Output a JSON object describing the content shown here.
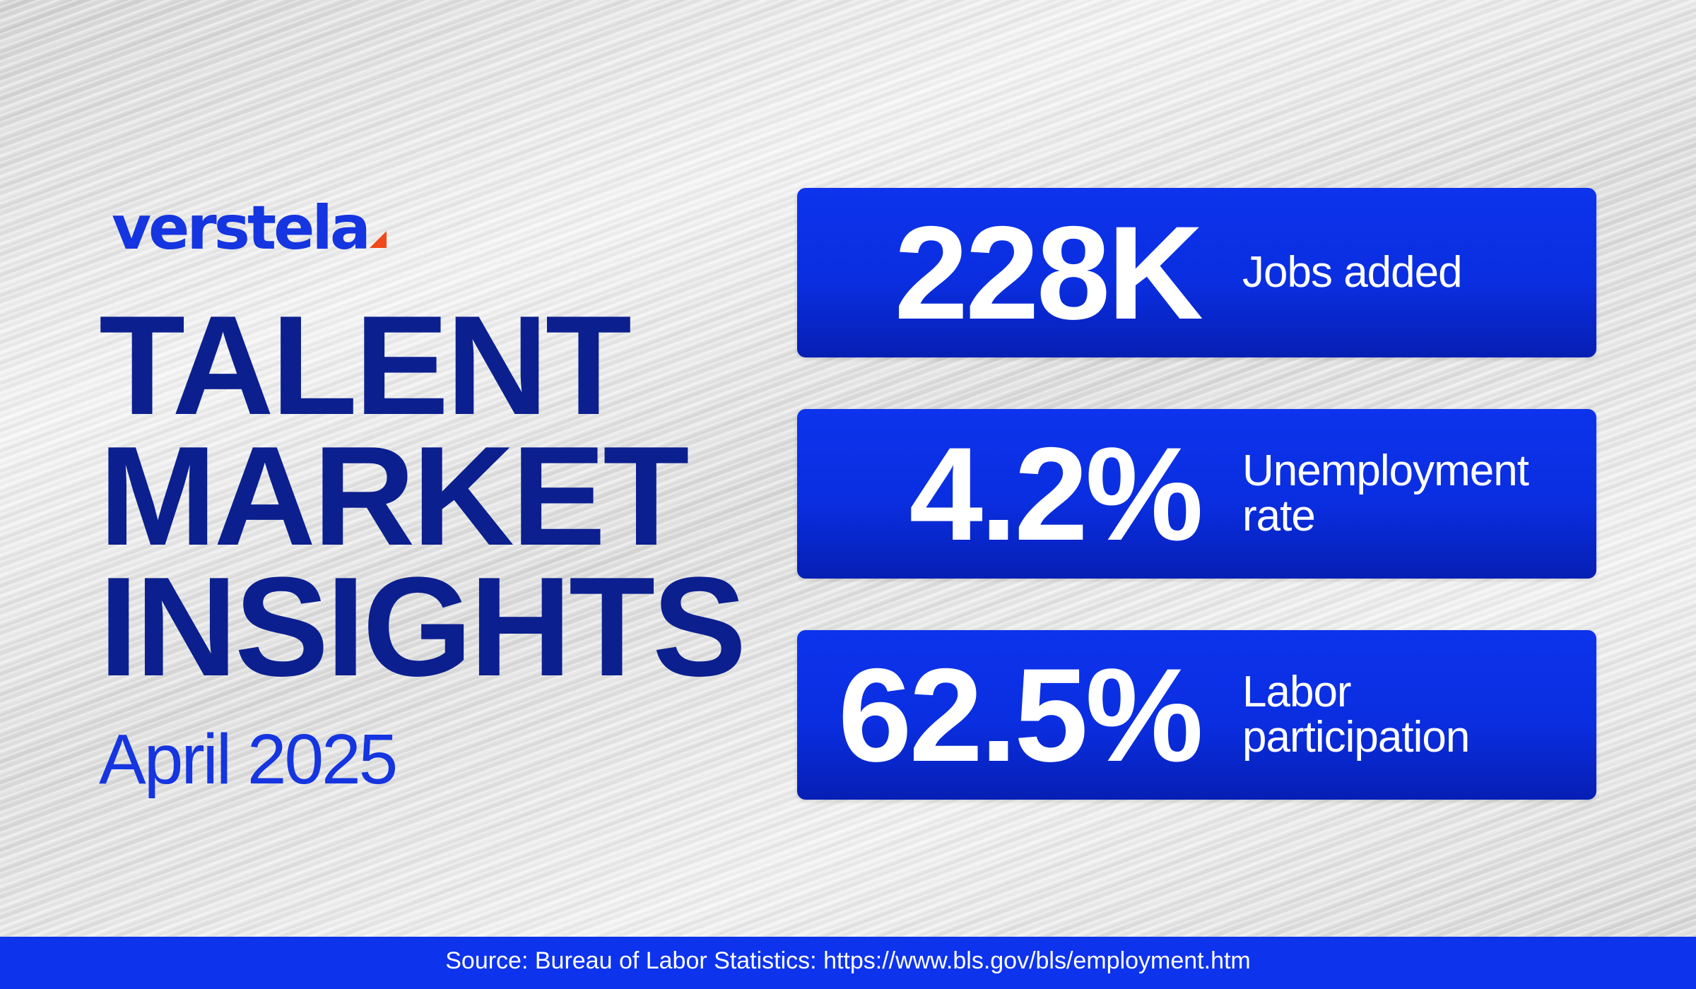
{
  "brand": {
    "logo_text": "verstela",
    "colors": {
      "brand_blue": "#1535e0",
      "navy": "#0b1f8f",
      "accent_orange": "#f04a1a",
      "card_blue": "#0d33ec"
    }
  },
  "title": {
    "line1": "TALENT",
    "line2": "MARKET",
    "line3": "INSIGHTS"
  },
  "date": "April 2025",
  "stats": [
    {
      "value": "228K",
      "label": "Jobs added"
    },
    {
      "value": "4.2%",
      "label": "Unemployment rate"
    },
    {
      "value": "62.5%",
      "label": "Labor participation"
    }
  ],
  "footer": {
    "source": "Source: Bureau of Labor Statistics: https://www.bls.gov/bls/employment.htm"
  }
}
